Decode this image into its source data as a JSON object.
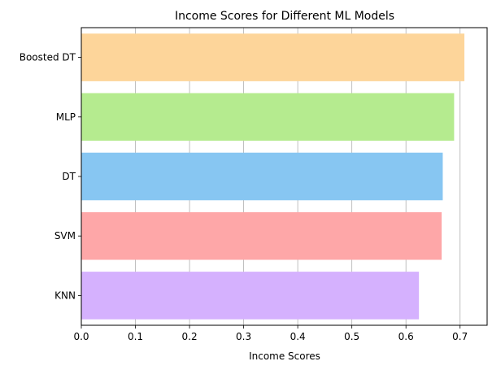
{
  "chart_data": {
    "type": "bar",
    "orientation": "horizontal",
    "title": "Income Scores for Different ML Models",
    "xlabel": "Income Scores",
    "ylabel": "",
    "categories": [
      "Boosted DT",
      "MLP",
      "DT",
      "SVM",
      "KNN"
    ],
    "values": [
      0.708,
      0.689,
      0.668,
      0.666,
      0.624
    ],
    "colors": [
      "#fdd59a",
      "#b5eb8f",
      "#87c6f2",
      "#fea7a8",
      "#d5b1fe"
    ],
    "xlim": [
      0,
      0.75
    ],
    "xticks": [
      "0.0",
      "0.1",
      "0.2",
      "0.3",
      "0.4",
      "0.5",
      "0.6",
      "0.7"
    ],
    "grid": "vertical",
    "legend": "none"
  }
}
